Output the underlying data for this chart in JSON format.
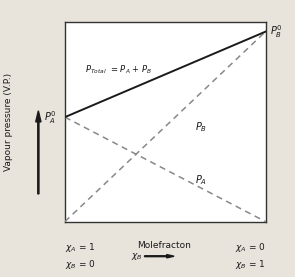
{
  "Pa0": 0.55,
  "Pb0": 1.0,
  "line_color_solid": "#1a1a1a",
  "line_color_dashed": "#888888",
  "bg_color": "#e8e4dc",
  "plot_bg_color": "#ffffff",
  "text_color": "#1a1a1a",
  "fig_width": 2.95,
  "fig_height": 2.77,
  "dpi": 100
}
